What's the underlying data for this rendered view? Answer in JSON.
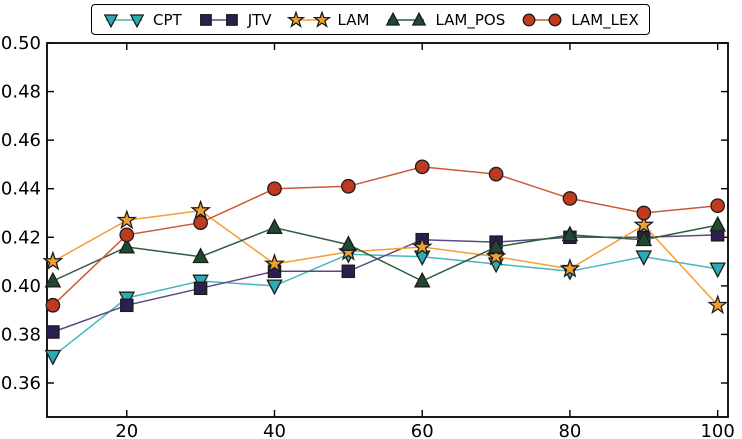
{
  "figure": {
    "background": "#ffffff",
    "border_color": "#000000"
  },
  "chart_data": {
    "type": "line",
    "title": "",
    "xlabel": "",
    "ylabel": "",
    "grid": false,
    "legend_position": "top-center",
    "xlim": [
      9.2,
      101.4
    ],
    "ylim": [
      0.346,
      0.5
    ],
    "xticks": [
      20,
      40,
      60,
      80,
      100
    ],
    "xtick_labels": [
      "20",
      "40",
      "60",
      "80",
      "100"
    ],
    "yticks": [
      0.36,
      0.38,
      0.4,
      0.42,
      0.44,
      0.46,
      0.48,
      0.5
    ],
    "ytick_labels": [
      "0.36",
      "0.38",
      "0.40",
      "0.42",
      "0.44",
      "0.46",
      "0.48",
      "0.50"
    ],
    "x": [
      10,
      20,
      30,
      40,
      50,
      60,
      70,
      80,
      90,
      100
    ],
    "marker_edge_color": "#1c1c1c",
    "series": [
      {
        "name": "CPT",
        "marker": "triangle-down",
        "line_color": "#45b7bd",
        "marker_color": "#2aacb4",
        "values": [
          0.371,
          0.395,
          0.402,
          0.4,
          0.413,
          0.412,
          0.409,
          0.406,
          0.412,
          0.407
        ]
      },
      {
        "name": "JTV",
        "marker": "square",
        "line_color": "#5a4a82",
        "marker_color": "#2c1e50",
        "values": [
          0.381,
          0.392,
          0.399,
          0.406,
          0.406,
          0.419,
          0.418,
          0.42,
          0.42,
          0.421
        ]
      },
      {
        "name": "LAM",
        "marker": "star",
        "line_color": "#f59d33",
        "marker_color": "#f0a030",
        "values": [
          0.41,
          0.427,
          0.431,
          0.409,
          0.414,
          0.416,
          0.412,
          0.407,
          0.425,
          0.392
        ]
      },
      {
        "name": "LAM_POS",
        "marker": "triangle-up",
        "line_color": "#2f5d43",
        "marker_color": "#1f4a30",
        "values": [
          0.402,
          0.416,
          0.412,
          0.424,
          0.417,
          0.402,
          0.416,
          0.421,
          0.419,
          0.425
        ]
      },
      {
        "name": "LAM_LEX",
        "marker": "circle",
        "line_color": "#cd5836",
        "marker_color": "#bf3a1e",
        "values": [
          0.392,
          0.421,
          0.426,
          0.44,
          0.441,
          0.449,
          0.446,
          0.436,
          0.43,
          0.433
        ]
      }
    ]
  }
}
